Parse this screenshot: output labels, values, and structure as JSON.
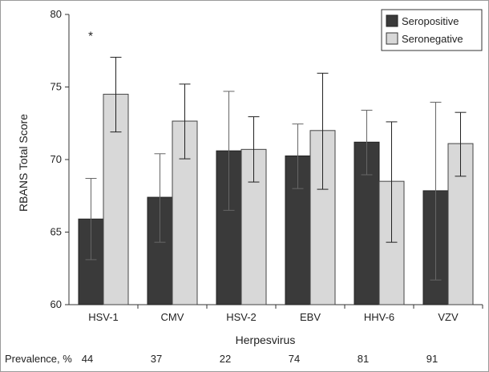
{
  "chart_data": {
    "type": "bar",
    "xlabel": "Herpesvirus",
    "ylabel": "RBANS Total Score",
    "ylim": [
      60,
      80
    ],
    "yticks": [
      60,
      65,
      70,
      75,
      80
    ],
    "categories": [
      "HSV-1",
      "CMV",
      "HSV-2",
      "EBV",
      "HHV-6",
      "VZV"
    ],
    "series": [
      {
        "name": "Seropositive",
        "color": "#3a3a3a",
        "values": [
          65.9,
          67.4,
          70.6,
          70.25,
          71.2,
          67.85
        ],
        "error_low": [
          63.1,
          64.3,
          66.5,
          68.0,
          68.95,
          61.7
        ],
        "error_high": [
          68.7,
          70.4,
          74.7,
          72.45,
          73.4,
          73.95
        ]
      },
      {
        "name": "Seronegative",
        "color": "#d8d8d8",
        "values": [
          74.5,
          72.65,
          70.7,
          72.0,
          68.5,
          71.1
        ],
        "error_low": [
          71.9,
          70.05,
          68.45,
          67.95,
          64.3,
          68.85
        ],
        "error_high": [
          77.05,
          75.2,
          72.95,
          75.95,
          72.6,
          73.25
        ]
      }
    ],
    "annotations": [
      {
        "text": "*",
        "category": "HSV-1"
      }
    ],
    "legend": {
      "placement": "top-right"
    },
    "grid": false,
    "prevalence": {
      "label": "Prevalence, %",
      "values": [
        "44",
        "37",
        "22",
        "74",
        "81",
        "91"
      ]
    }
  }
}
